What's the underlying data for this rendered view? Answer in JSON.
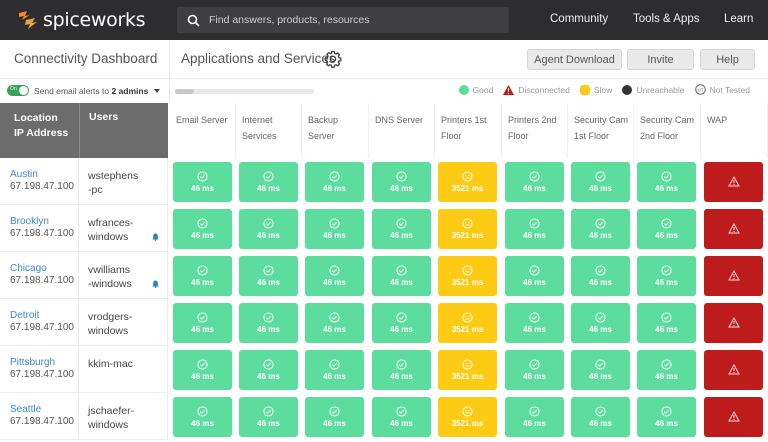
{
  "topbar": {
    "logo_text": "spiceworks",
    "search_placeholder": "Find answers, products, resources",
    "nav": [
      "Community",
      "Tools & Apps",
      "Learn"
    ]
  },
  "sidebar": {
    "title": "Connectivity Dashboard",
    "toggle_label": "On",
    "alerts_prefix": "Send email alerts to ",
    "alerts_target": "2 admins"
  },
  "main": {
    "title": "Applications and Services",
    "buttons": {
      "agent_download": "Agent Download",
      "invite": "Invite",
      "help": "Help"
    },
    "progress_percent": 14
  },
  "legend": [
    {
      "label": "Good",
      "color": "#5ddd9d",
      "icon": "check-circle-icon"
    },
    {
      "label": "Disconnected",
      "color": "#be1c1c",
      "icon": "warning-triangle-icon"
    },
    {
      "label": "Slow",
      "color": "#fecb14",
      "icon": "slow-badge-icon"
    },
    {
      "label": "Unreachable",
      "color": "#333333",
      "icon": "unreachable-dot-icon"
    },
    {
      "label": "Not Tested",
      "color": "#888888",
      "icon": "not-tested-icon"
    }
  ],
  "table": {
    "col_location": [
      "Location",
      "IP Address"
    ],
    "col_users": "Users",
    "services": [
      [
        "Email Server"
      ],
      [
        "Internet",
        "Services"
      ],
      [
        "Backup",
        "Server"
      ],
      [
        "DNS Server"
      ],
      [
        "Printers 1st",
        "Floor"
      ],
      [
        "Printers 2nd",
        "Floor"
      ],
      [
        "Security Cam",
        "1st Floor"
      ],
      [
        "Security Cam",
        "2nd Floor"
      ],
      [
        "WAP"
      ]
    ],
    "statuses": [
      "good",
      "good",
      "good",
      "good",
      "slow",
      "good",
      "good",
      "good",
      "disconnected"
    ],
    "rows": [
      {
        "city": "Austin",
        "ip": "67.198.47.100",
        "user": [
          "wstephens",
          "-pc"
        ],
        "bell": false,
        "values": [
          "46 ms",
          "46 ms",
          "46 ms",
          "46 ms",
          "3521 ms",
          "46 ms",
          "46 ms",
          "46 ms",
          ""
        ]
      },
      {
        "city": "Brooklyn",
        "ip": "67.198.47.100",
        "user": [
          "wfrances-",
          "windows"
        ],
        "bell": true,
        "values": [
          "46 ms",
          "46 ms",
          "46 ms",
          "46 ms",
          "3521 ms",
          "46 ms",
          "46 ms",
          "46 ms",
          ""
        ]
      },
      {
        "city": "Chicago",
        "ip": "67.198.47.100",
        "user": [
          "vwilliams",
          "-windows"
        ],
        "bell": true,
        "values": [
          "46 ms",
          "46 ms",
          "46 ms",
          "46 ms",
          "3521 ms",
          "46 ms",
          "46 ms",
          "46 ms",
          ""
        ]
      },
      {
        "city": "Detroit",
        "ip": "67.198.47.100",
        "user": [
          "vrodgers-",
          "windows"
        ],
        "bell": false,
        "values": [
          "46 ms",
          "46 ms",
          "46 ms",
          "46 ms",
          "3521 ms",
          "46 ms",
          "46 ms",
          "46 ms",
          ""
        ]
      },
      {
        "city": "Pittsburgh",
        "ip": "67.198.47.100",
        "user": [
          "kkim-mac"
        ],
        "bell": false,
        "values": [
          "46 ms",
          "46 ms",
          "46 ms",
          "46 ms",
          "3521 ms",
          "46 ms",
          "46 ms",
          "46 ms",
          ""
        ]
      },
      {
        "city": "Seattle",
        "ip": "67.198.47.100",
        "user": [
          "jschaefer-",
          "windows"
        ],
        "bell": false,
        "values": [
          "46 ms",
          "46 ms",
          "46 ms",
          "46 ms",
          "3521 ms",
          "46 ms",
          "46 ms",
          "46 ms",
          ""
        ]
      }
    ]
  }
}
